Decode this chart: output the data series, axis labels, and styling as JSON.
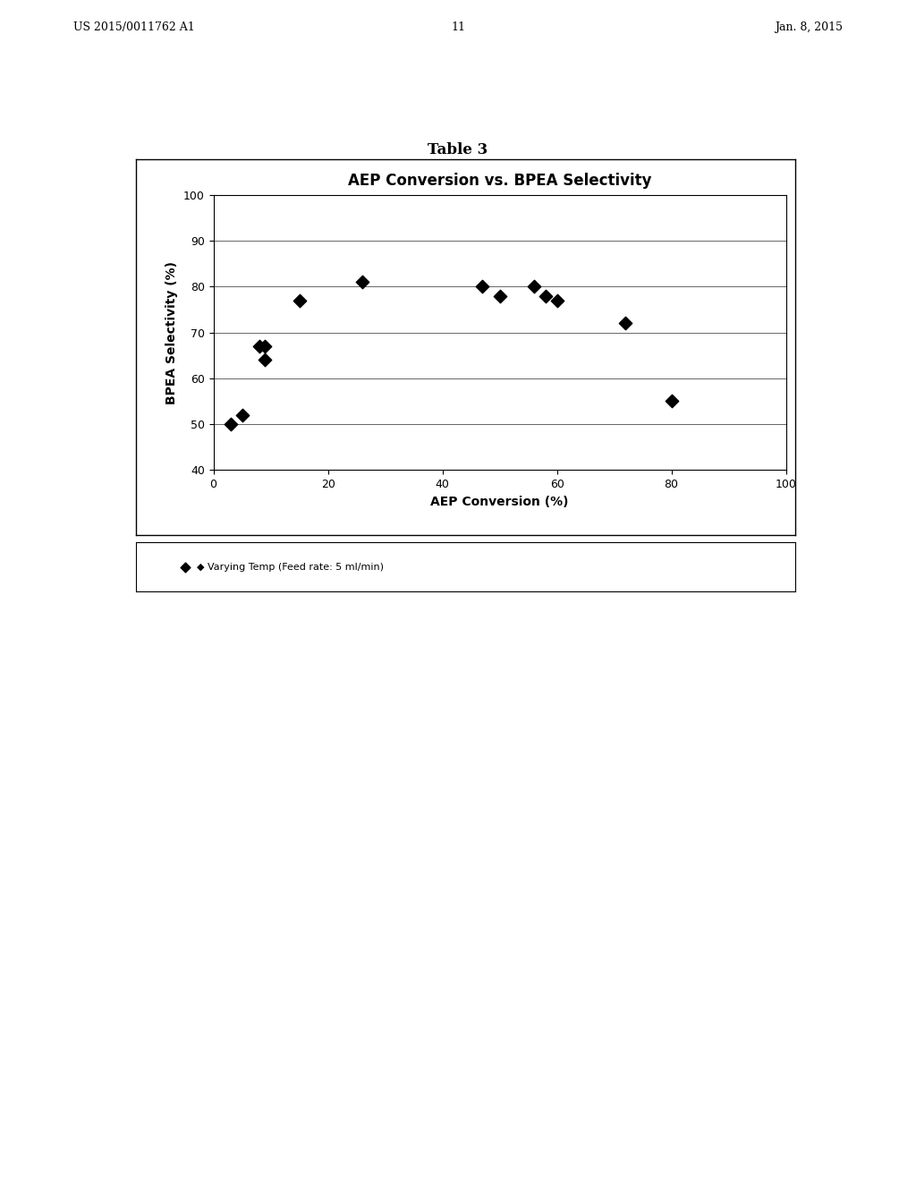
{
  "title": "AEP Conversion vs. BPEA Selectivity",
  "table_label": "Table 3",
  "xlabel": "AEP Conversion (%)",
  "ylabel": "BPEA Selectivity (%)",
  "xlim": [
    0,
    100
  ],
  "ylim": [
    40,
    100
  ],
  "xticks": [
    0,
    20,
    40,
    60,
    80,
    100
  ],
  "yticks": [
    40,
    50,
    60,
    70,
    80,
    90,
    100
  ],
  "data_points": [
    [
      3,
      50
    ],
    [
      5,
      52
    ],
    [
      8,
      67
    ],
    [
      9,
      67
    ],
    [
      9,
      64
    ],
    [
      15,
      77
    ],
    [
      26,
      81
    ],
    [
      47,
      80
    ],
    [
      50,
      78
    ],
    [
      56,
      80
    ],
    [
      58,
      78
    ],
    [
      60,
      77
    ],
    [
      72,
      72
    ],
    [
      80,
      55
    ]
  ],
  "marker_color": "#000000",
  "marker_style": "D",
  "marker_size": 6,
  "legend_label": "Varying Temp (Feed rate: 5 ml/min)",
  "background_color": "#ffffff",
  "plot_bg_color": "#ffffff",
  "header_text_left": "US 2015/0011762 A1",
  "header_text_right": "Jan. 8, 2015",
  "header_page": "11",
  "title_fontsize": 12,
  "axis_label_fontsize": 10,
  "tick_fontsize": 9,
  "legend_fontsize": 8,
  "table_label_fontsize": 12
}
